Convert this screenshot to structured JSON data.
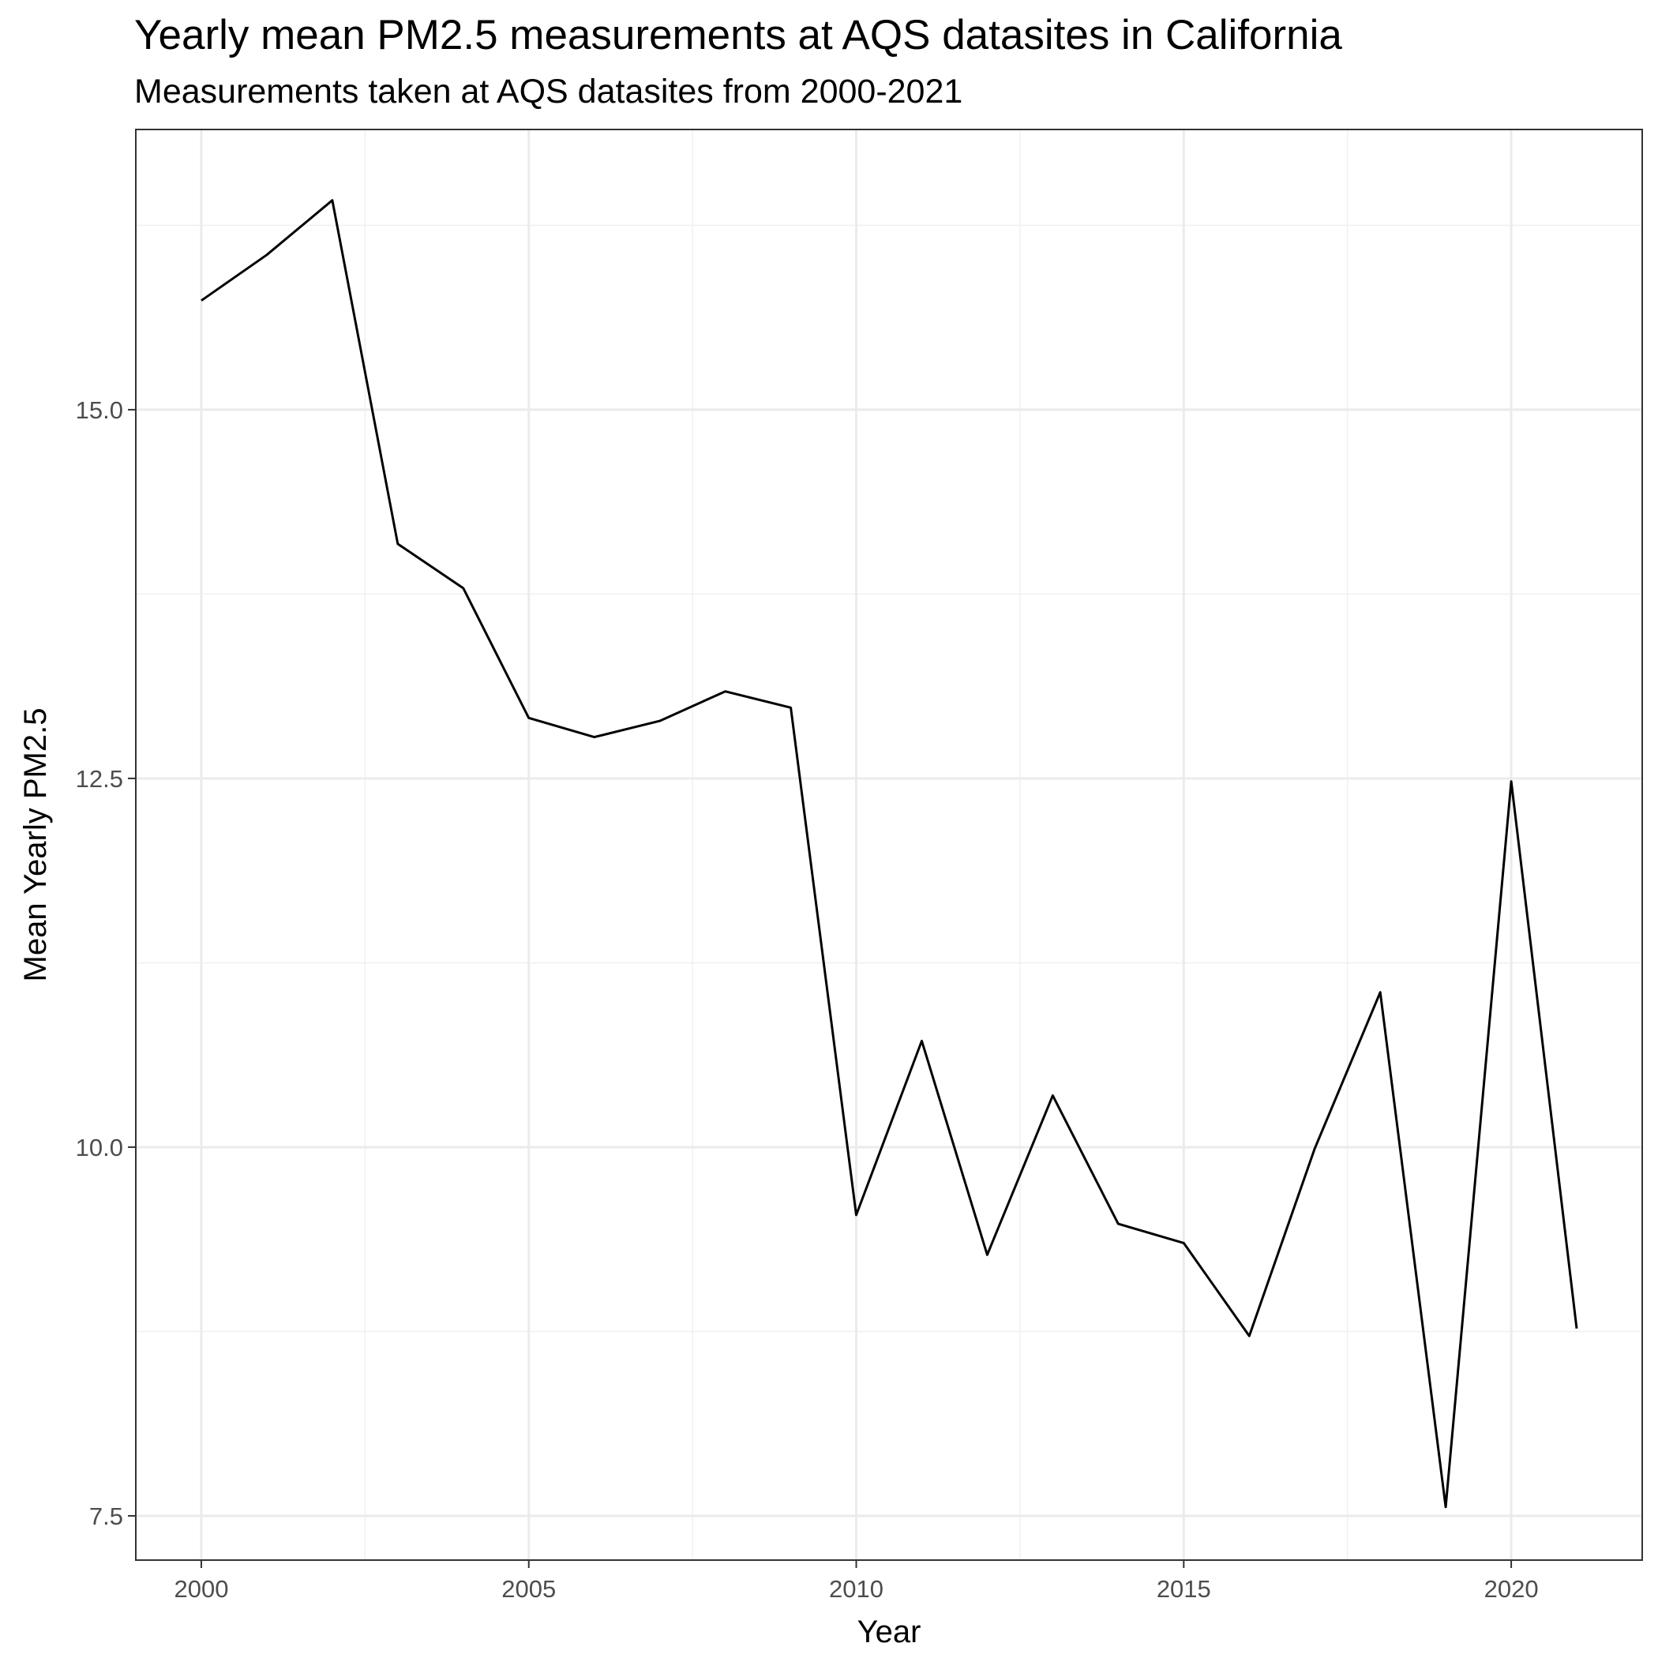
{
  "chart_data": {
    "type": "line",
    "title": "Yearly mean PM2.5 measurements at AQS datasites in California",
    "subtitle": "Measurements taken at AQS datasites from 2000-2021",
    "xlabel": "Year",
    "ylabel": "Mean Yearly PM2.5",
    "xlim": [
      1999,
      2022
    ],
    "ylim": [
      7.2,
      16.9
    ],
    "x_ticks": [
      2000,
      2005,
      2010,
      2015,
      2020
    ],
    "x_tick_labels": [
      "2000",
      "2005",
      "2010",
      "2015",
      "2020"
    ],
    "y_ticks": [
      7.5,
      10.0,
      12.5,
      15.0
    ],
    "y_tick_labels": [
      "7.5",
      "10.0",
      "12.5",
      "15.0"
    ],
    "grid": true,
    "series_color": "#000000",
    "x": [
      2000,
      2001,
      2002,
      2003,
      2004,
      2005,
      2006,
      2007,
      2008,
      2009,
      2010,
      2011,
      2012,
      2013,
      2014,
      2015,
      2016,
      2017,
      2018,
      2019,
      2020,
      2021
    ],
    "values": [
      15.74,
      16.05,
      16.42,
      14.09,
      13.79,
      12.91,
      12.78,
      12.89,
      13.09,
      12.98,
      9.54,
      10.72,
      9.27,
      10.35,
      9.48,
      9.35,
      8.72,
      9.99,
      11.05,
      7.56,
      12.48,
      8.77
    ]
  }
}
